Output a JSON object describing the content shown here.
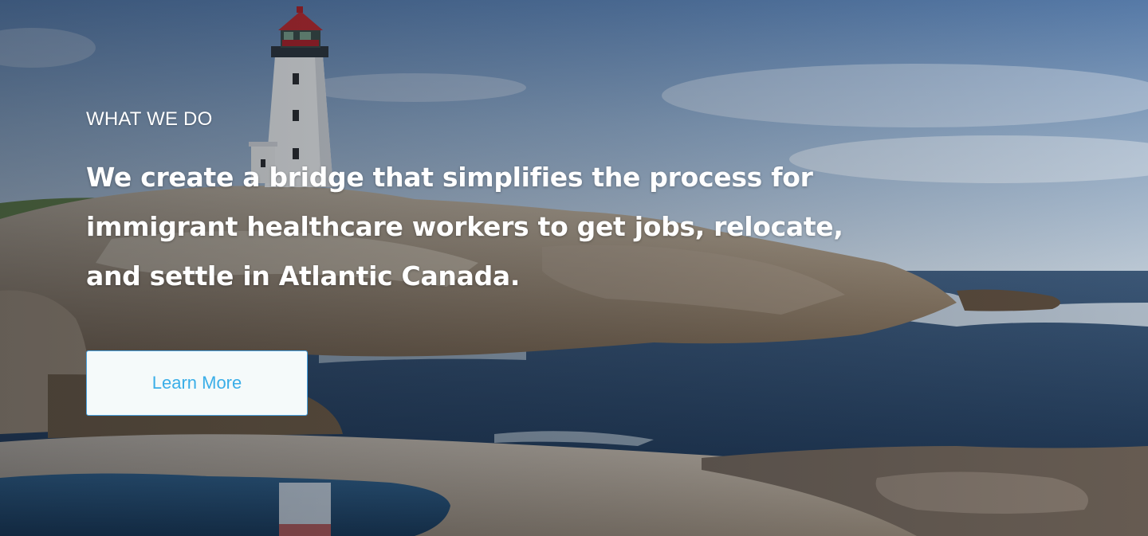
{
  "hero": {
    "eyebrow": "WHAT WE DO",
    "headline": "We create a bridge that simplifies the process for immigrant healthcare workers to get jobs, relocate, and settle in Atlantic Canada.",
    "cta_label": "Learn More"
  },
  "colors": {
    "accent": "#3AAEE8",
    "button_bg": "#F5FAFA",
    "text": "#FFFFFF"
  }
}
